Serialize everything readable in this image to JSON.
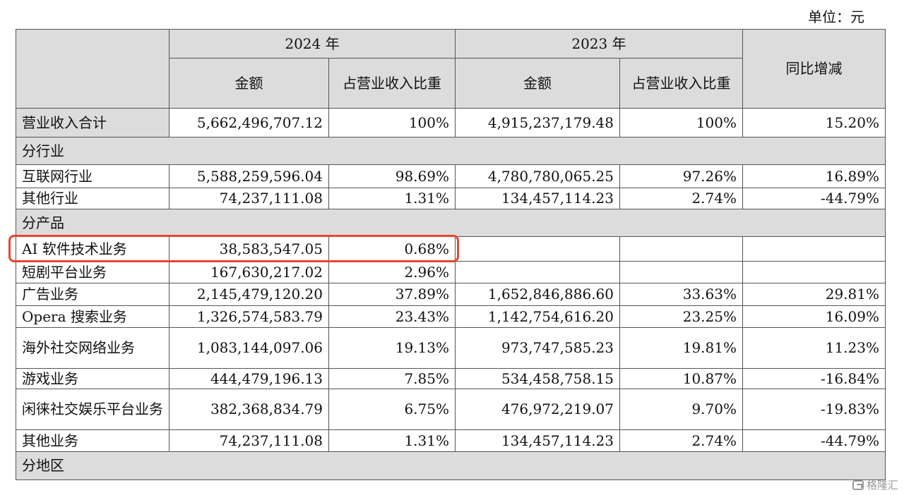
{
  "unit_label": "单位：元",
  "header": {
    "year_2024": "2024 年",
    "year_2023": "2023 年",
    "amount": "金额",
    "share": "占营业收入比重",
    "yoy": "同比增减"
  },
  "total": {
    "label": "营业收入合计",
    "amt2024": "5,662,496,707.12",
    "pct2024": "100%",
    "amt2023": "4,915,237,179.48",
    "pct2023": "100%",
    "yoy": "15.20%"
  },
  "sections": {
    "industry": "分行业",
    "product": "分产品",
    "region": "分地区"
  },
  "industry_rows": [
    {
      "label": "互联网行业",
      "amt2024": "5,588,259,596.04",
      "pct2024": "98.69%",
      "amt2023": "4,780,780,065.25",
      "pct2023": "97.26%",
      "yoy": "16.89%"
    },
    {
      "label": "其他行业",
      "amt2024": "74,237,111.08",
      "pct2024": "1.31%",
      "amt2023": "134,457,114.23",
      "pct2023": "2.74%",
      "yoy": "-44.79%"
    }
  ],
  "product_rows": [
    {
      "label": "AI 软件技术业务",
      "amt2024": "38,583,547.05",
      "pct2024": "0.68%",
      "amt2023": "",
      "pct2023": "",
      "yoy": ""
    },
    {
      "label": "短剧平台业务",
      "amt2024": "167,630,217.02",
      "pct2024": "2.96%",
      "amt2023": "",
      "pct2023": "",
      "yoy": ""
    },
    {
      "label": "广告业务",
      "amt2024": "2,145,479,120.20",
      "pct2024": "37.89%",
      "amt2023": "1,652,846,886.60",
      "pct2023": "33.63%",
      "yoy": "29.81%"
    },
    {
      "label": "Opera 搜索业务",
      "amt2024": "1,326,574,583.79",
      "pct2024": "23.43%",
      "amt2023": "1,142,754,616.20",
      "pct2023": "23.25%",
      "yoy": "16.09%"
    },
    {
      "label": "海外社交网络业务",
      "amt2024": "1,083,144,097.06",
      "pct2024": "19.13%",
      "amt2023": "973,747,585.23",
      "pct2023": "19.81%",
      "yoy": "11.23%"
    },
    {
      "label": "游戏业务",
      "amt2024": "444,479,196.13",
      "pct2024": "7.85%",
      "amt2023": "534,458,758.15",
      "pct2023": "10.87%",
      "yoy": "-16.84%"
    },
    {
      "label": "闲徕社交娱乐平台业务",
      "amt2024": "382,368,834.79",
      "pct2024": "6.75%",
      "amt2023": "476,972,219.07",
      "pct2023": "9.70%",
      "yoy": "-19.83%"
    },
    {
      "label": "其他业务",
      "amt2024": "74,237,111.08",
      "pct2024": "1.31%",
      "amt2023": "134,457,114.23",
      "pct2023": "2.74%",
      "yoy": "-44.79%"
    }
  ],
  "watermark": "格隆汇",
  "colors": {
    "header_bg": "#dcdcdc",
    "highlight": "#e8462c"
  }
}
